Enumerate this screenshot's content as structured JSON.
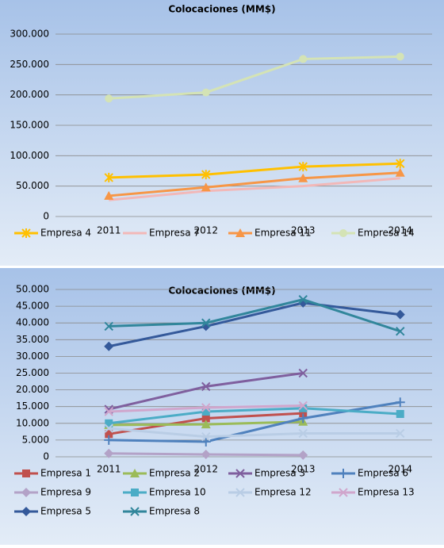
{
  "chart_data": [
    {
      "type": "line",
      "title": "Colocaciones (MM$)",
      "categories": [
        "2011",
        "2012",
        "2013",
        "2014"
      ],
      "ylim": [
        0,
        300000
      ],
      "yticks": [
        0,
        {
          "value": 50000,
          "label": "50.000"
        },
        {
          "value": 100000,
          "label": "100.000"
        },
        {
          "value": 150000,
          "label": "150.000"
        },
        {
          "value": 200000,
          "label": "200.000"
        },
        {
          "value": 250000,
          "label": "250.000"
        },
        {
          "value": 300000,
          "label": "300.000"
        }
      ],
      "grid": true,
      "legend": "bottom",
      "series": [
        {
          "name": "Empresa 4",
          "color": "#ffc000",
          "marker": "star",
          "values": [
            64000,
            69000,
            82000,
            87000
          ]
        },
        {
          "name": "Empresa 7",
          "color": "#f2b8b8",
          "marker": "none",
          "values": [
            27000,
            42000,
            50000,
            63000
          ]
        },
        {
          "name": "Empresa 11",
          "color": "#f79646",
          "marker": "triangle",
          "values": [
            34000,
            48000,
            63000,
            72000
          ]
        },
        {
          "name": "Empresa 14",
          "color": "#d4e3b5",
          "marker": "circle",
          "values": [
            194000,
            204000,
            259000,
            263000
          ]
        }
      ]
    },
    {
      "type": "line",
      "title": "Colocaciones (MM$)",
      "categories": [
        "2011",
        "2012",
        "2013",
        "2014"
      ],
      "ylim": [
        0,
        50000
      ],
      "yticks": [
        0,
        {
          "value": 5000,
          "label": "5.000"
        },
        {
          "value": 10000,
          "label": "10.000"
        },
        {
          "value": 15000,
          "label": "15.000"
        },
        {
          "value": 20000,
          "label": "20.000"
        },
        {
          "value": 25000,
          "label": "25.000"
        },
        {
          "value": 30000,
          "label": "30.000"
        },
        {
          "value": 35000,
          "label": "35.000"
        },
        {
          "value": 40000,
          "label": "40.000"
        },
        {
          "value": 45000,
          "label": "45.000"
        },
        {
          "value": 50000,
          "label": "50.000"
        }
      ],
      "grid": true,
      "legend": "bottom",
      "series": [
        {
          "name": "Empresa 1",
          "color": "#c0504d",
          "marker": "square",
          "values": [
            6800,
            11500,
            13000,
            null
          ]
        },
        {
          "name": "Empresa 2",
          "color": "#9bbb59",
          "marker": "triangle",
          "values": [
            9500,
            9700,
            10500,
            null
          ]
        },
        {
          "name": "Empresa 3",
          "color": "#7f5f9e",
          "marker": "x",
          "values": [
            14200,
            21000,
            25000,
            null
          ]
        },
        {
          "name": "Empresa 6",
          "color": "#4f81bd",
          "marker": "plus",
          "values": [
            5000,
            4500,
            11500,
            16300
          ]
        },
        {
          "name": "Empresa 9",
          "color": "#b3a2c7",
          "marker": "diamond",
          "values": [
            1000,
            700,
            500,
            null
          ]
        },
        {
          "name": "Empresa 10",
          "color": "#4bacc6",
          "marker": "square",
          "values": [
            10000,
            13500,
            14500,
            12800
          ]
        },
        {
          "name": "Empresa 12",
          "color": "#b9cde5",
          "marker": "x",
          "values": [
            8500,
            6000,
            7000,
            7000
          ]
        },
        {
          "name": "Empresa 13",
          "color": "#d0a6cc",
          "marker": "x",
          "values": [
            13500,
            14700,
            15300,
            null
          ]
        },
        {
          "name": "Empresa 5",
          "color": "#34599a",
          "marker": "diamond",
          "values": [
            33000,
            39000,
            46000,
            42500
          ]
        },
        {
          "name": "Empresa 8",
          "color": "#31869b",
          "marker": "x",
          "values": [
            39000,
            40000,
            47000,
            37500
          ]
        }
      ]
    }
  ]
}
